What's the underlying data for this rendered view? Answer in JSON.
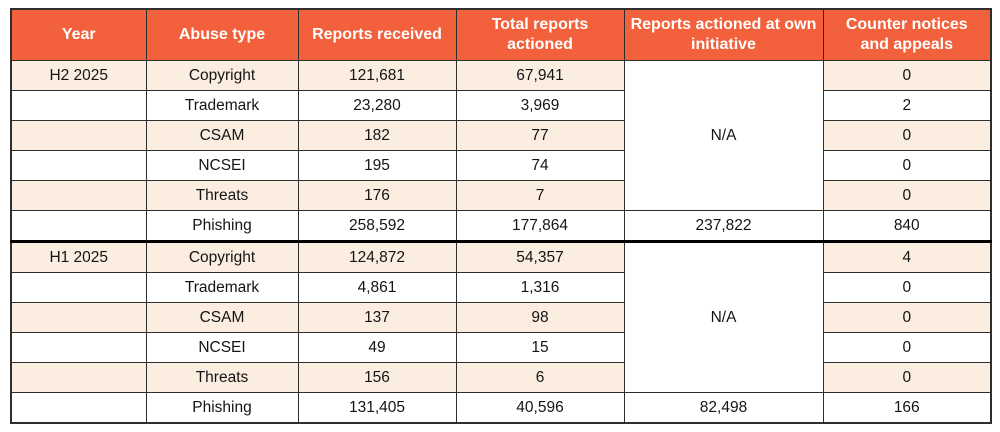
{
  "colors": {
    "header_bg": "#F2613C",
    "header_text": "#ffffff",
    "stripe_bg": "#FBEDE0",
    "white_bg": "#ffffff",
    "border": "#2e2e2e",
    "section_divider": "#000000",
    "text": "#141414"
  },
  "table": {
    "headers": [
      "Year",
      "Abuse type",
      "Reports received",
      "Total reports actioned",
      "Reports actioned at own initiative",
      "Counter notices and appeals"
    ],
    "sections": [
      {
        "year": "H2 2025",
        "na_label": "N/A",
        "rows": [
          {
            "abuse_type": "Copyright",
            "reports_received": "121,681",
            "total_actioned": "67,941",
            "own_initiative": "",
            "counter_notices": "0"
          },
          {
            "abuse_type": "Trademark",
            "reports_received": "23,280",
            "total_actioned": "3,969",
            "own_initiative": "",
            "counter_notices": "2"
          },
          {
            "abuse_type": "CSAM",
            "reports_received": "182",
            "total_actioned": "77",
            "own_initiative": "",
            "counter_notices": "0"
          },
          {
            "abuse_type": "NCSEI",
            "reports_received": "195",
            "total_actioned": "74",
            "own_initiative": "",
            "counter_notices": "0"
          },
          {
            "abuse_type": "Threats",
            "reports_received": "176",
            "total_actioned": "7",
            "own_initiative": "",
            "counter_notices": "0"
          },
          {
            "abuse_type": "Phishing",
            "reports_received": "258,592",
            "total_actioned": "177,864",
            "own_initiative": "237,822",
            "counter_notices": "840"
          }
        ]
      },
      {
        "year": "H1 2025",
        "na_label": "N/A",
        "rows": [
          {
            "abuse_type": "Copyright",
            "reports_received": "124,872",
            "total_actioned": "54,357",
            "own_initiative": "",
            "counter_notices": "4"
          },
          {
            "abuse_type": "Trademark",
            "reports_received": "4,861",
            "total_actioned": "1,316",
            "own_initiative": "",
            "counter_notices": "0"
          },
          {
            "abuse_type": "CSAM",
            "reports_received": "137",
            "total_actioned": "98",
            "own_initiative": "",
            "counter_notices": "0"
          },
          {
            "abuse_type": "NCSEI",
            "reports_received": "49",
            "total_actioned": "15",
            "own_initiative": "",
            "counter_notices": "0"
          },
          {
            "abuse_type": "Threats",
            "reports_received": "156",
            "total_actioned": "6",
            "own_initiative": "",
            "counter_notices": "0"
          },
          {
            "abuse_type": "Phishing",
            "reports_received": "131,405",
            "total_actioned": "40,596",
            "own_initiative": "82,498",
            "counter_notices": "166"
          }
        ]
      }
    ]
  }
}
